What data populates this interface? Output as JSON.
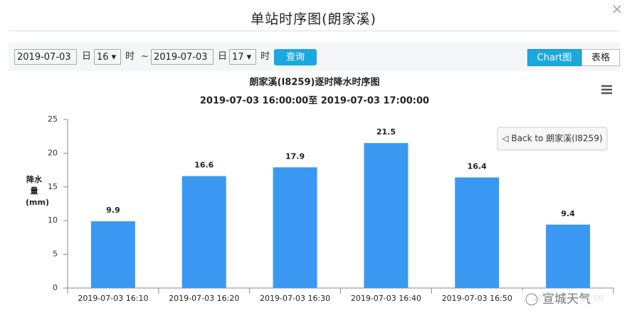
{
  "header": {
    "title": "单站时序图(朗家溪)"
  },
  "controls": {
    "start_date": "2019-07-03",
    "start_day_unit": "日",
    "start_hour": "16",
    "start_hour_unit": "时",
    "separator": "~",
    "end_date": "2019-07-03",
    "end_day_unit": "日",
    "end_hour": "17",
    "end_hour_unit": "时",
    "query_button": "查询",
    "chart_tab": "Chart图",
    "table_tab": "表格"
  },
  "chart_data": {
    "type": "bar",
    "title": "朗家溪(I8259)逐时降水时序图",
    "subtitle": "2019-07-03 16:00:00至 2019-07-03 17:00:00",
    "y_label": "降水量(mm)",
    "back_button": "◁ Back to 朗家溪(I8259)",
    "watermark": "宣城天气",
    "categories": [
      "2019-07-03 16:10",
      "2019-07-03 16:20",
      "2019-07-03 16:30",
      "2019-07-03 16:40",
      "2019-07-03 16:50",
      "2019-07-03 17:00"
    ],
    "values": [
      9.9,
      16.6,
      17.9,
      21.5,
      16.4,
      9.4
    ],
    "color": "#3a98f2",
    "ylim": [
      0,
      25
    ],
    "yticks": [
      0,
      5,
      10,
      15,
      20,
      25
    ],
    "grid": false
  }
}
